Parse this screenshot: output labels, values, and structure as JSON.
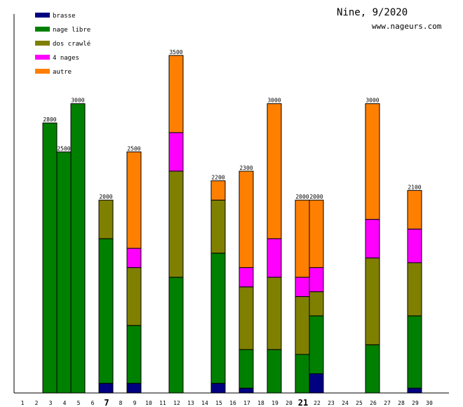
{
  "chart_data": {
    "type": "bar",
    "stacked": true,
    "title": "Nine, 9/2020",
    "subtitle": "www.nageurs.com",
    "xlabel": "",
    "ylabel": "",
    "ylim": [
      0,
      3800
    ],
    "categories": [
      "1",
      "2",
      "3",
      "4",
      "5",
      "6",
      "7",
      "8",
      "9",
      "10",
      "11",
      "12",
      "13",
      "14",
      "15",
      "16",
      "17",
      "18",
      "19",
      "20",
      "21",
      "22",
      "23",
      "24",
      "25",
      "26",
      "27",
      "28",
      "29",
      "30"
    ],
    "highlighted_categories": [
      "7",
      "21"
    ],
    "legend_position": "top-left",
    "series": [
      {
        "name": "brasse",
        "color": "#000080",
        "values": [
          0,
          0,
          0,
          0,
          0,
          0,
          100,
          0,
          100,
          0,
          0,
          0,
          0,
          0,
          100,
          0,
          50,
          0,
          0,
          0,
          0,
          200,
          0,
          0,
          0,
          0,
          0,
          0,
          50,
          0
        ]
      },
      {
        "name": "nage libre",
        "color": "#008000",
        "values": [
          0,
          0,
          2800,
          2500,
          3000,
          0,
          1500,
          0,
          600,
          0,
          0,
          1200,
          0,
          0,
          1350,
          0,
          400,
          0,
          450,
          0,
          400,
          600,
          0,
          0,
          0,
          500,
          0,
          0,
          750,
          0
        ]
      },
      {
        "name": "dos crawlé",
        "color": "#808000",
        "values": [
          0,
          0,
          0,
          0,
          0,
          0,
          400,
          0,
          600,
          0,
          0,
          1100,
          0,
          0,
          550,
          0,
          650,
          0,
          750,
          0,
          600,
          250,
          0,
          0,
          0,
          900,
          0,
          0,
          550,
          0
        ]
      },
      {
        "name": "4 nages",
        "color": "#ff00ff",
        "values": [
          0,
          0,
          0,
          0,
          0,
          0,
          0,
          0,
          200,
          0,
          0,
          400,
          0,
          0,
          0,
          0,
          200,
          0,
          400,
          0,
          200,
          250,
          0,
          0,
          0,
          400,
          0,
          0,
          350,
          0
        ]
      },
      {
        "name": "autre",
        "color": "#ff8000",
        "values": [
          0,
          0,
          0,
          0,
          0,
          0,
          0,
          0,
          1000,
          0,
          0,
          800,
          0,
          0,
          200,
          0,
          1000,
          0,
          1400,
          0,
          800,
          700,
          0,
          0,
          0,
          1200,
          0,
          0,
          400,
          0
        ]
      }
    ],
    "totals": [
      "",
      "",
      "2800",
      "2500",
      "3000",
      "",
      "2000",
      "",
      "2500",
      "",
      "",
      "3500",
      "",
      "",
      "2200",
      "",
      "2300",
      "",
      "3000",
      "",
      "2000",
      "2000",
      "",
      "",
      "",
      "3000",
      "",
      "",
      "2100",
      ""
    ]
  }
}
